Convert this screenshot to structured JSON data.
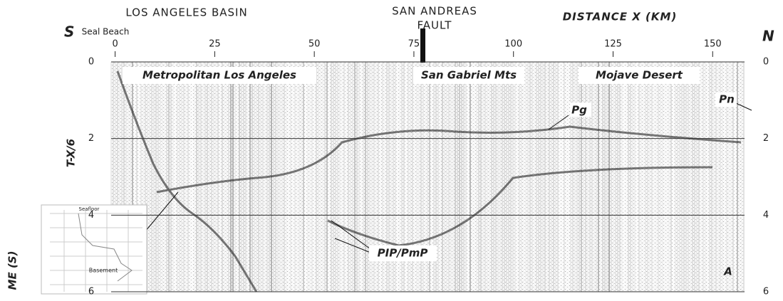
{
  "chart_data": {
    "type": "seismic-section",
    "title_left": "LOS ANGELES BASIN",
    "title_center": [
      "SAN ANDREAS",
      "FAULT"
    ],
    "x_label": "DISTANCE X (KM)",
    "y_label": "T-X/6",
    "y_label_outer": "ME (S)",
    "left_end": "S",
    "right_end": "N",
    "origin_label": "Seal Beach",
    "regions": [
      "Metropolitan Los Angeles",
      "San Gabriel Mts",
      "Mojave Desert"
    ],
    "annotations": [
      "Pg",
      "Pn",
      "PIP/PmP",
      "A"
    ],
    "inset_labels": [
      "Seafloor",
      "Basement"
    ],
    "xlim": [
      -1,
      158
    ],
    "xticks": [
      0,
      25,
      50,
      75,
      100,
      125,
      150
    ],
    "ylim": [
      0,
      6
    ],
    "yticks": [
      0,
      2,
      4,
      6
    ],
    "grid": true
  }
}
